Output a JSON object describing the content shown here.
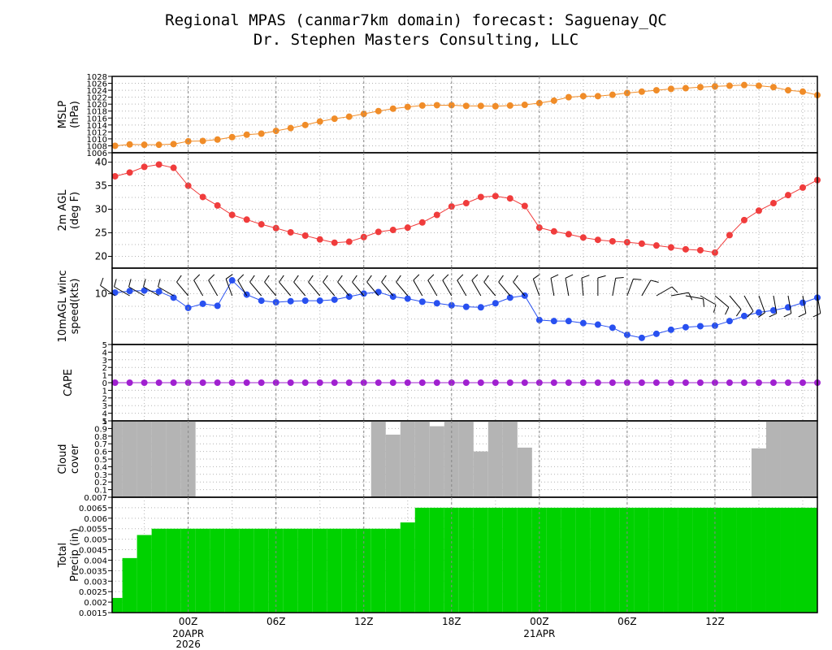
{
  "title_line1": "Regional MPAS (canmar7km domain) forecast: Saguenay_QC",
  "title_line2": "Dr. Stephen Masters Consulting, LLC",
  "colors": {
    "mslp": "#f08c28",
    "temp": "#f03c3c",
    "wind": "#2850f0",
    "cape": "#a020d0",
    "cloud": "#b4b4b4",
    "precip": "#00d200"
  },
  "chart_data": [
    {
      "type": "line",
      "panel": "mslp",
      "ylabel": [
        "MSLP",
        "(hPa)"
      ],
      "ylim": [
        1006,
        1028
      ],
      "yticks": [
        1006,
        1008,
        1010,
        1012,
        1014,
        1016,
        1018,
        1020,
        1022,
        1024,
        1026,
        1028
      ],
      "ytick_labels": [
        "1006",
        "1008",
        "1010",
        "1012",
        "1014",
        "1016",
        "1018",
        "1020",
        "1022",
        "1024",
        "1026",
        "1028"
      ],
      "x_hours": [
        -5,
        -4,
        -3,
        -2,
        -1,
        0,
        1,
        2,
        3,
        4,
        5,
        6,
        7,
        8,
        9,
        10,
        11,
        12,
        13,
        14,
        15,
        16,
        17,
        18,
        19,
        20,
        21,
        22,
        23,
        24,
        25,
        26,
        27,
        28,
        29,
        30,
        31,
        32,
        33,
        34,
        35,
        36,
        37,
        38,
        39,
        40,
        41,
        42,
        43
      ],
      "values": [
        1008.0,
        1008.4,
        1008.3,
        1008.3,
        1008.5,
        1009.3,
        1009.4,
        1009.8,
        1010.5,
        1011.2,
        1011.5,
        1012.3,
        1013.1,
        1014.0,
        1015.0,
        1015.8,
        1016.4,
        1017.2,
        1018.0,
        1018.7,
        1019.2,
        1019.6,
        1019.7,
        1019.7,
        1019.5,
        1019.5,
        1019.4,
        1019.6,
        1019.8,
        1020.3,
        1021.0,
        1022.0,
        1022.3,
        1022.3,
        1022.7,
        1023.2,
        1023.6,
        1024.0,
        1024.4,
        1024.6,
        1024.9,
        1025.1,
        1025.3,
        1025.5,
        1025.3,
        1024.9,
        1024.0,
        1023.6,
        1022.6
      ]
    },
    {
      "type": "line",
      "panel": "temperature",
      "ylabel": [
        "2m AGL",
        "(deg F)"
      ],
      "ylim": [
        17.5,
        42
      ],
      "yticks": [
        20,
        25,
        30,
        35,
        40
      ],
      "ytick_labels": [
        "20",
        "25",
        "30",
        "35",
        "40"
      ],
      "x_hours": [
        -5,
        -4,
        -3,
        -2,
        -1,
        0,
        1,
        2,
        3,
        4,
        5,
        6,
        7,
        8,
        9,
        10,
        11,
        12,
        13,
        14,
        15,
        16,
        17,
        18,
        19,
        20,
        21,
        22,
        23,
        24,
        25,
        26,
        27,
        28,
        29,
        30,
        31,
        32,
        33,
        34,
        35,
        36,
        37,
        38,
        39,
        40,
        41,
        42,
        43
      ],
      "values": [
        37.0,
        37.8,
        39.0,
        39.5,
        38.8,
        35.0,
        32.6,
        30.8,
        28.8,
        27.8,
        26.8,
        26.0,
        25.1,
        24.4,
        23.6,
        22.9,
        23.1,
        24.1,
        25.2,
        25.6,
        26.1,
        27.2,
        28.8,
        30.6,
        31.3,
        32.6,
        32.8,
        32.3,
        30.7,
        26.1,
        25.3,
        24.7,
        24.0,
        23.5,
        23.2,
        23.0,
        22.7,
        22.3,
        21.9,
        21.5,
        21.3,
        20.8,
        24.5,
        27.7,
        29.7,
        31.3,
        33.0,
        34.6,
        36.2
      ]
    },
    {
      "type": "line",
      "panel": "wind",
      "ylabel": [
        "10mAGL winc",
        "speed(kts)"
      ],
      "ylim": [
        0,
        15
      ],
      "yticks": [
        10
      ],
      "ytick_labels": [
        "10"
      ],
      "x_hours": [
        -5,
        -4,
        -3,
        -2,
        -1,
        0,
        1,
        2,
        3,
        4,
        5,
        6,
        7,
        8,
        9,
        10,
        11,
        12,
        13,
        14,
        15,
        16,
        17,
        18,
        19,
        20,
        21,
        22,
        23,
        24,
        25,
        26,
        27,
        28,
        29,
        30,
        31,
        32,
        33,
        34,
        35,
        36,
        37,
        38,
        39,
        40,
        41,
        42,
        43
      ],
      "values": [
        10.2,
        10.5,
        10.6,
        10.4,
        9.2,
        7.2,
        8.0,
        7.6,
        12.6,
        9.8,
        8.6,
        8.3,
        8.5,
        8.6,
        8.6,
        8.8,
        9.4,
        10.0,
        10.3,
        9.4,
        9.0,
        8.4,
        8.1,
        7.7,
        7.4,
        7.3,
        8.1,
        9.2,
        9.6,
        4.8,
        4.6,
        4.6,
        4.2,
        3.9,
        3.3,
        1.9,
        1.3,
        2.1,
        2.9,
        3.4,
        3.6,
        3.7,
        4.6,
        5.6,
        6.3,
        6.7,
        7.3,
        8.2,
        9.2
      ],
      "barbs_note": "wind barbs drawn along series"
    },
    {
      "type": "line",
      "panel": "cape",
      "ylabel": [
        "CAPE"
      ],
      "ylim": [
        -5,
        5
      ],
      "yticks": [
        -5,
        -4,
        -3,
        -2,
        -1,
        0,
        1,
        2,
        3,
        4,
        5
      ],
      "ytick_labels": [
        "5",
        "4",
        "3",
        "2",
        "1",
        "0",
        "1",
        "2",
        "3",
        "4",
        "5"
      ],
      "x_hours": [
        -5,
        -4,
        -3,
        -2,
        -1,
        0,
        1,
        2,
        3,
        4,
        5,
        6,
        7,
        8,
        9,
        10,
        11,
        12,
        13,
        14,
        15,
        16,
        17,
        18,
        19,
        20,
        21,
        22,
        23,
        24,
        25,
        26,
        27,
        28,
        29,
        30,
        31,
        32,
        33,
        34,
        35,
        36,
        37,
        38,
        39,
        40,
        41,
        42,
        43
      ],
      "values": [
        0,
        0,
        0,
        0,
        0,
        0,
        0,
        0,
        0,
        0,
        0,
        0,
        0,
        0,
        0,
        0,
        0,
        0,
        0,
        0,
        0,
        0,
        0,
        0,
        0,
        0,
        0,
        0,
        0,
        0,
        0,
        0,
        0,
        0,
        0,
        0,
        0,
        0,
        0,
        0,
        0,
        0,
        0,
        0,
        0,
        0,
        0,
        0,
        0
      ]
    },
    {
      "type": "area",
      "panel": "cloud",
      "ylabel": [
        "Cloud",
        "cover"
      ],
      "ylim": [
        0,
        1
      ],
      "yticks": [
        0.1,
        0.2,
        0.3,
        0.4,
        0.5,
        0.6,
        0.7,
        0.8,
        0.9,
        1
      ],
      "ytick_labels": [
        "0.1",
        "0.2",
        "0.3",
        "0.4",
        "0.5",
        "0.6",
        "0.7",
        "0.8",
        "0.9",
        "1"
      ],
      "x_hours": [
        -5,
        -4,
        -3,
        -2,
        -1,
        0,
        1,
        2,
        3,
        4,
        5,
        6,
        7,
        8,
        9,
        10,
        11,
        12,
        13,
        14,
        15,
        16,
        17,
        18,
        19,
        20,
        21,
        22,
        23,
        24,
        25,
        26,
        27,
        28,
        29,
        30,
        31,
        32,
        33,
        34,
        35,
        36,
        37,
        38,
        39,
        40,
        41,
        42,
        43
      ],
      "values": [
        1,
        1,
        1,
        1,
        1,
        1,
        0.01,
        0,
        0,
        0,
        0,
        0,
        0,
        0,
        0,
        0,
        0,
        0,
        1,
        0.82,
        1,
        1,
        0.93,
        1,
        1,
        0.6,
        1,
        1,
        0.65,
        0,
        0,
        0,
        0,
        0,
        0,
        0,
        0,
        0,
        0,
        0,
        0,
        0,
        0,
        0,
        0.64,
        1,
        1,
        1,
        1
      ]
    },
    {
      "type": "area",
      "panel": "precip",
      "ylabel": [
        "Total",
        "Precip (in)"
      ],
      "ylim": [
        0.0015,
        0.007
      ],
      "yticks": [
        0.0015,
        0.002,
        0.0025,
        0.003,
        0.0035,
        0.004,
        0.0045,
        0.005,
        0.0055,
        0.006,
        0.0065,
        0.007
      ],
      "ytick_labels": [
        "0.0015",
        "0.002",
        "0.0025",
        "0.003",
        "0.0035",
        "0.004",
        "0.0045",
        "0.005",
        "0.0055",
        "0.006",
        "0.0065",
        "0.007"
      ],
      "x_hours": [
        -5,
        -4,
        -3,
        -2,
        -1,
        0,
        1,
        2,
        3,
        4,
        5,
        6,
        7,
        8,
        9,
        10,
        11,
        12,
        13,
        14,
        15,
        16,
        17,
        18,
        19,
        20,
        21,
        22,
        23,
        24,
        25,
        26,
        27,
        28,
        29,
        30,
        31,
        32,
        33,
        34,
        35,
        36,
        37,
        38,
        39,
        40,
        41,
        42,
        43
      ],
      "values": [
        0.0022,
        0.0041,
        0.0052,
        0.0055,
        0.0055,
        0.0055,
        0.0055,
        0.0055,
        0.0055,
        0.0055,
        0.0055,
        0.0055,
        0.0055,
        0.0055,
        0.0055,
        0.0055,
        0.0055,
        0.0055,
        0.0055,
        0.0055,
        0.0058,
        0.0065,
        0.0065,
        0.0065,
        0.0065,
        0.0065,
        0.0065,
        0.0065,
        0.0065,
        0.0065,
        0.0065,
        0.0065,
        0.0065,
        0.0065,
        0.0065,
        0.0065,
        0.0065,
        0.0065,
        0.0065,
        0.0065,
        0.0065,
        0.0065,
        0.0065,
        0.0065,
        0.0065,
        0.0065,
        0.0065,
        0.0065,
        0.0065
      ]
    }
  ],
  "x_axis": {
    "hours": [
      0,
      6,
      12,
      18,
      24,
      30,
      36
    ],
    "labels": [
      "00Z",
      "06Z",
      "12Z",
      "18Z",
      "00Z",
      "06Z",
      "12Z"
    ],
    "date_labels": [
      {
        "hour": 0,
        "lines": [
          "20APR",
          "2026"
        ]
      },
      {
        "hour": 24,
        "lines": [
          "21APR"
        ]
      }
    ],
    "xlim": [
      -5.2,
      43
    ]
  }
}
